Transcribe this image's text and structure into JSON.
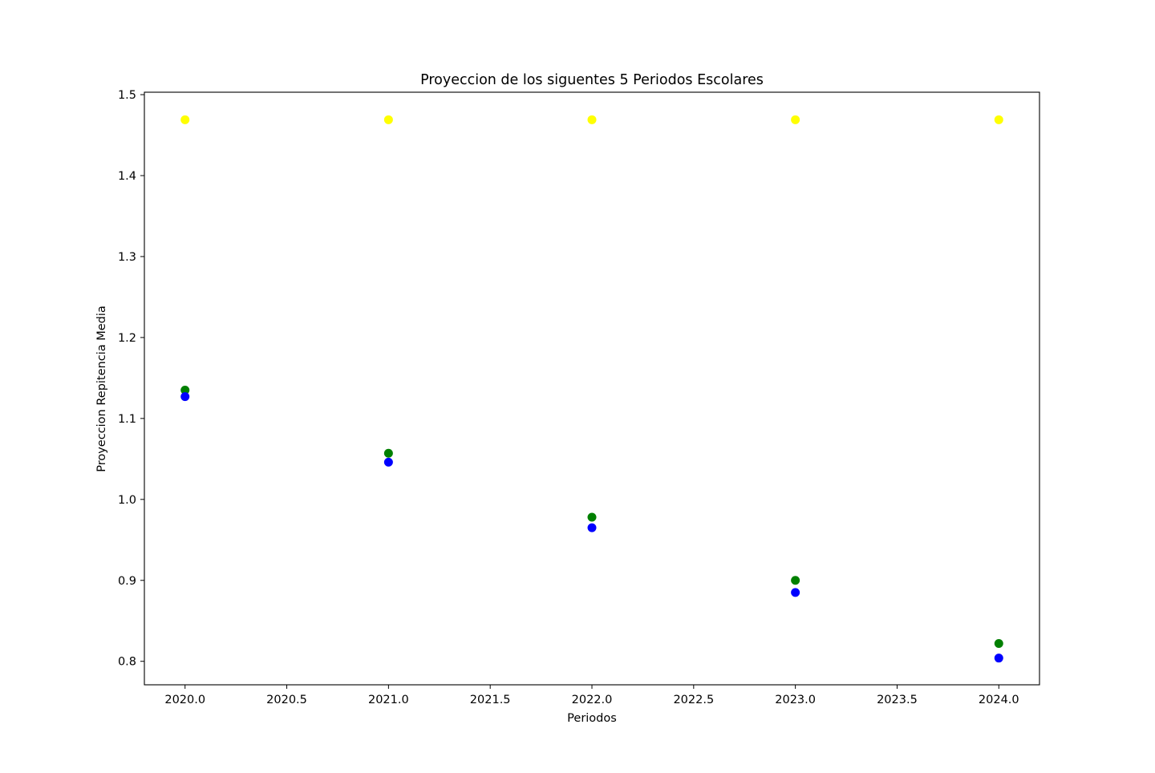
{
  "chart_data": {
    "type": "scatter",
    "title": "Proyeccion de los siguentes 5 Periodos Escolares",
    "xlabel": "Periodos",
    "ylabel": "Proyeccion Repitencia Media",
    "xlim": [
      2019.8,
      2024.2
    ],
    "ylim": [
      0.771,
      1.503
    ],
    "xticks": [
      2020.0,
      2020.5,
      2021.0,
      2021.5,
      2022.0,
      2022.5,
      2023.0,
      2023.5,
      2024.0
    ],
    "xtick_labels": [
      "2020.0",
      "2020.5",
      "2021.0",
      "2021.5",
      "2022.0",
      "2022.5",
      "2023.0",
      "2023.5",
      "2024.0"
    ],
    "yticks": [
      0.8,
      0.9,
      1.0,
      1.1,
      1.2,
      1.3,
      1.4,
      1.5
    ],
    "ytick_labels": [
      "0.8",
      "0.9",
      "1.0",
      "1.1",
      "1.2",
      "1.3",
      "1.4",
      "1.5"
    ],
    "grid": false,
    "legend": "none",
    "x": [
      2020,
      2021,
      2022,
      2023,
      2024
    ],
    "series": [
      {
        "color": "#ffff00",
        "values": [
          1.469,
          1.469,
          1.469,
          1.469,
          1.469
        ]
      },
      {
        "color": "#008000",
        "values": [
          1.135,
          1.057,
          0.978,
          0.9,
          0.822
        ]
      },
      {
        "color": "#0000ff",
        "values": [
          1.127,
          1.046,
          0.965,
          0.885,
          0.804
        ]
      }
    ]
  }
}
